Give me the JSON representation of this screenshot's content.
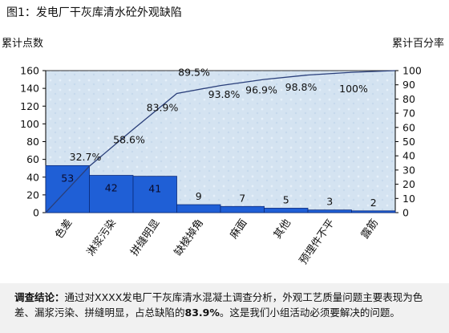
{
  "title": "图1：发电厂干灰库清水砼外观缺陷",
  "chart_data": {
    "type": "bar",
    "ylabel": "累计点数",
    "y2label": "累计百分率",
    "ylim": [
      0,
      160
    ],
    "y2lim": [
      0,
      100
    ],
    "yticks": [
      0,
      20,
      40,
      60,
      80,
      100,
      120,
      140,
      160
    ],
    "y2ticks": [
      0,
      10,
      20,
      30,
      40,
      50,
      60,
      70,
      80,
      90,
      100
    ],
    "categories": [
      "色差",
      "淋浆污染",
      "拼缝明显",
      "缺棱掉角",
      "麻面",
      "其他",
      "预埋件不平",
      "露筋"
    ],
    "values": [
      53,
      42,
      41,
      9,
      7,
      5,
      3,
      2
    ],
    "cumulative_labels": [
      "32.7%",
      "58.6%",
      "83.9%",
      "89.5%",
      "93.8%",
      "96.9%",
      "98.8%",
      "100%"
    ],
    "cumulative_values": [
      32.7,
      58.6,
      83.9,
      89.5,
      93.8,
      96.9,
      98.8,
      100
    ],
    "colors": {
      "bar": "#1f5fd6",
      "bar_edge": "#0b2a7a",
      "plot_bg": "#d7e6f3",
      "line": "#2a3f7a"
    }
  },
  "conclusion": {
    "lead": "调查结论：",
    "text_before": "通过对XXXX发电厂干灰库清水混凝土调查分析，外观工艺质量问题主要表现为色差、漏浆污染、拼缝明显，占总缺陷的",
    "highlight": "83.9%",
    "text_after": "。这是我们小组活动必须要解决的问题。"
  }
}
